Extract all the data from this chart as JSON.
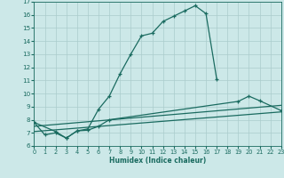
{
  "xlabel": "Humidex (Indice chaleur)",
  "bg_color": "#cce8e8",
  "grid_color": "#aacccc",
  "line_color": "#1a6b60",
  "x_min": 0,
  "x_max": 23,
  "y_min": 6,
  "y_max": 17,
  "curve1_x": [
    0,
    1,
    2,
    3,
    4,
    5,
    6,
    7,
    8,
    9,
    10,
    11,
    12,
    13,
    14,
    15,
    16,
    17
  ],
  "curve1_y": [
    7.8,
    6.85,
    7.0,
    6.6,
    7.15,
    7.3,
    8.8,
    9.8,
    11.5,
    13.0,
    14.4,
    14.6,
    15.5,
    15.9,
    16.3,
    16.7,
    16.1,
    11.1
  ],
  "curve2_x": [
    0,
    2,
    3,
    4,
    5,
    6,
    7,
    19,
    20,
    21,
    23
  ],
  "curve2_y": [
    7.8,
    7.1,
    6.6,
    7.15,
    7.2,
    7.5,
    8.0,
    9.4,
    9.8,
    9.45,
    8.7
  ],
  "line1_x": [
    0,
    23
  ],
  "line1_y": [
    7.5,
    9.1
  ],
  "line2_x": [
    0,
    23
  ],
  "line2_y": [
    7.1,
    8.6
  ]
}
